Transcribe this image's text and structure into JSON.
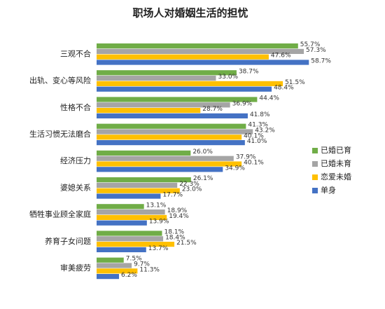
{
  "chart_data": {
    "type": "hbar",
    "title": "职场人对婚姻生活的担忧",
    "categories": [
      "三观不合",
      "出轨、变心等风险",
      "性格不合",
      "生活习惯无法磨合",
      "经济压力",
      "婆媳关系",
      "牺牲事业顾全家庭",
      "养育子女问题",
      "审美疲劳"
    ],
    "xlim": [
      0,
      60
    ],
    "legend": "right",
    "series": [
      {
        "name": "已婚已育",
        "color": "#70ad47",
        "values": [
          55.7,
          38.7,
          44.4,
          41.3,
          26.0,
          26.1,
          13.1,
          18.1,
          7.5
        ],
        "value_labels": [
          "55.7%",
          "38.7%",
          "44.4%",
          "41.3%",
          "26.0%",
          "26.1%",
          "13.1%",
          "18.1%",
          "7.5%"
        ]
      },
      {
        "name": "已婚未育",
        "color": "#a5a5a5",
        "values": [
          57.3,
          33.0,
          36.9,
          43.2,
          37.9,
          22.3,
          18.9,
          18.4,
          9.7
        ],
        "value_labels": [
          "57.3%",
          "33.0%",
          "36.9%",
          "43.2%",
          "37.9%",
          "22.3%",
          "18.9%",
          "18.4%",
          "9.7%"
        ]
      },
      {
        "name": "恋爱未婚",
        "color": "#ffc000",
        "values": [
          47.6,
          51.5,
          28.7,
          40.1,
          40.1,
          23.0,
          19.4,
          21.5,
          11.3
        ],
        "value_labels": [
          "47.6%",
          "51.5%",
          "28.7%",
          "40.1%",
          "40.1%",
          "23.0%",
          "19.4%",
          "21.5%",
          "11.3%"
        ]
      },
      {
        "name": "单身",
        "color": "#4472c4",
        "values": [
          58.7,
          48.4,
          41.8,
          41.0,
          34.9,
          17.7,
          13.9,
          13.7,
          6.2
        ],
        "value_labels": [
          "58.7%",
          "48.4%",
          "41.8%",
          "41.0%",
          "34.9%",
          "17.7%",
          "13.9%",
          "13.7%",
          "6.2%"
        ]
      }
    ]
  }
}
